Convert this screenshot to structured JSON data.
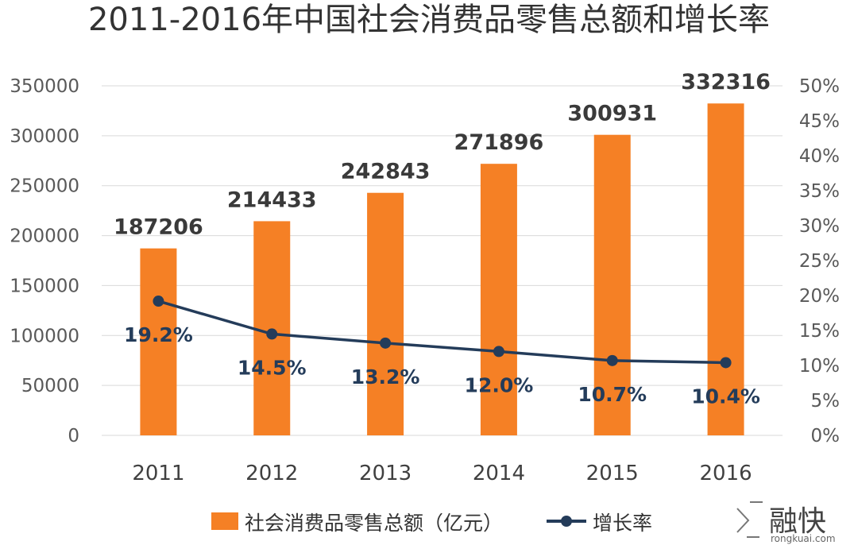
{
  "chart_data": {
    "type": "bar+line",
    "title": "2011-2016年中国社会消费品零售总额和增长率",
    "categories": [
      "2011",
      "2012",
      "2013",
      "2014",
      "2015",
      "2016"
    ],
    "series": [
      {
        "name": "社会消费品零售总额（亿元）",
        "type": "bar",
        "axis": "left",
        "color": "#f58025",
        "values": [
          187206,
          214433,
          242843,
          271896,
          300931,
          332316
        ],
        "labels": [
          "187206",
          "214433",
          "242843",
          "271896",
          "300931",
          "332316"
        ]
      },
      {
        "name": "增长率",
        "type": "line",
        "axis": "right",
        "color": "#243c5a",
        "values": [
          19.2,
          14.5,
          13.2,
          12.0,
          10.7,
          10.4
        ],
        "labels": [
          "19.2%",
          "14.5%",
          "13.2%",
          "12.0%",
          "10.7%",
          "10.4%"
        ]
      }
    ],
    "left_axis": {
      "ylim": [
        0,
        350000
      ],
      "ticks": [
        0,
        50000,
        100000,
        150000,
        200000,
        250000,
        300000,
        350000
      ],
      "tick_labels": [
        "0",
        "50000",
        "100000",
        "150000",
        "200000",
        "250000",
        "300000",
        "350000"
      ]
    },
    "right_axis": {
      "ylim": [
        0,
        50
      ],
      "ticks": [
        0,
        5,
        10,
        15,
        20,
        25,
        30,
        35,
        40,
        45,
        50
      ],
      "tick_labels": [
        "0%",
        "5%",
        "10%",
        "15%",
        "20%",
        "25%",
        "30%",
        "35%",
        "40%",
        "45%",
        "50%"
      ]
    },
    "grid": true,
    "legend": "bottom"
  },
  "watermark": {
    "text": "融快",
    "subtext": "rongkuai.com"
  }
}
